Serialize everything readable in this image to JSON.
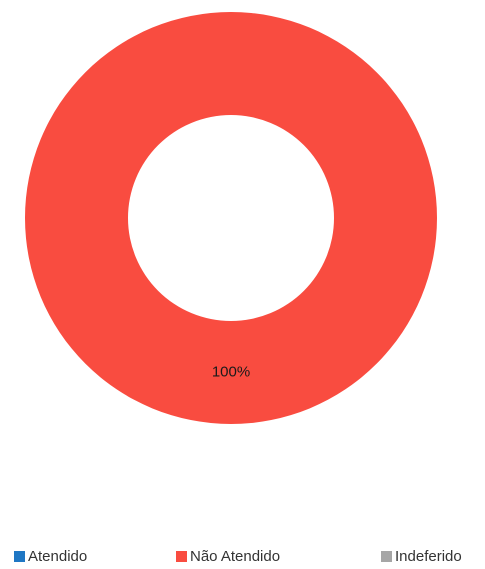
{
  "chart_data": {
    "type": "pie",
    "donut": true,
    "categories": [
      "Atendido",
      "Não Atendido",
      "Indeferido"
    ],
    "values": [
      0,
      100,
      0
    ],
    "value_labels": [
      "",
      "100%",
      ""
    ],
    "colors": [
      "#1f77c4",
      "#f94c40",
      "#a6a6a6"
    ],
    "legend_position": "bottom"
  }
}
